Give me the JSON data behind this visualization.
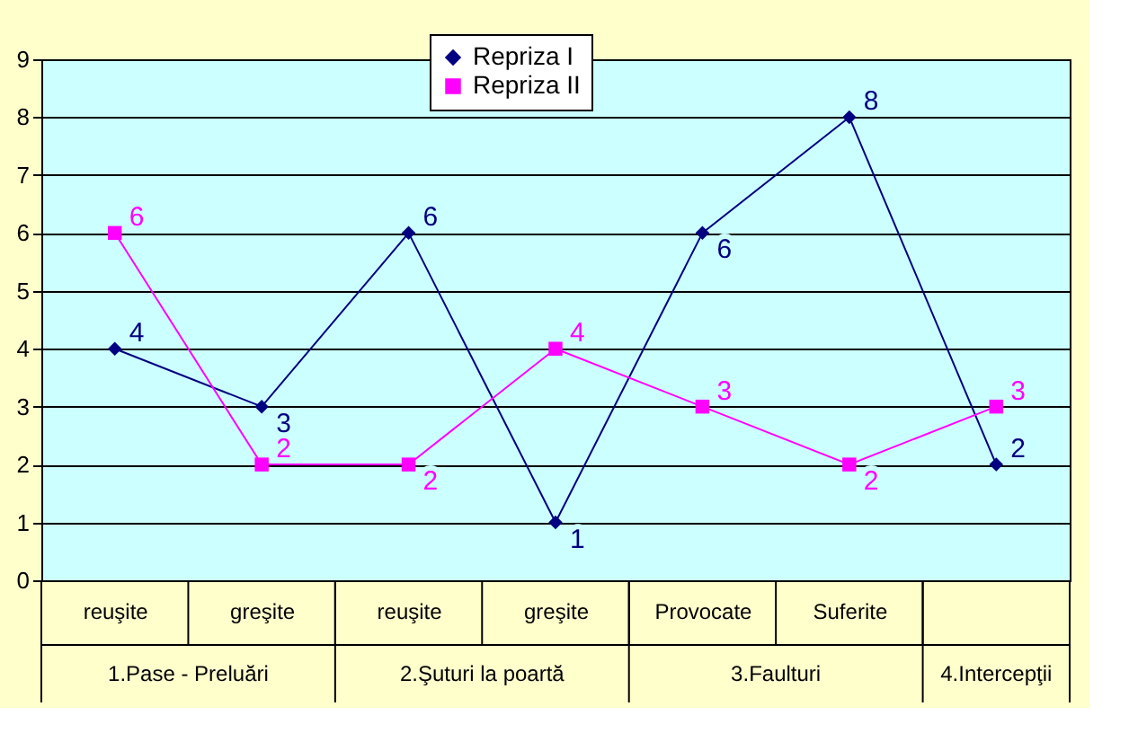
{
  "chart_data": {
    "type": "line",
    "categories": [
      "reuşite",
      "greşite",
      "reuşite",
      "greşite",
      "Provocate",
      "Suferite",
      null
    ],
    "series": [
      {
        "name": "Repriza I",
        "color": "#000080",
        "marker": "diamond",
        "values": [
          4,
          3,
          6,
          1,
          6,
          8,
          2
        ]
      },
      {
        "name": "Repriza II",
        "color": "#ff00ff",
        "marker": "square",
        "values": [
          6,
          2,
          2,
          4,
          3,
          2,
          3
        ]
      }
    ],
    "annotations": [
      "1.Pase - Preluări",
      "2.Şuturi la poartă",
      "3.Faulturi",
      "4.Intercepţii"
    ],
    "ylim": [
      0,
      9
    ],
    "yticks": [
      0,
      1,
      2,
      3,
      4,
      5,
      6,
      7,
      8,
      9
    ],
    "grid": "y",
    "legend": "top",
    "data_labels": true
  }
}
